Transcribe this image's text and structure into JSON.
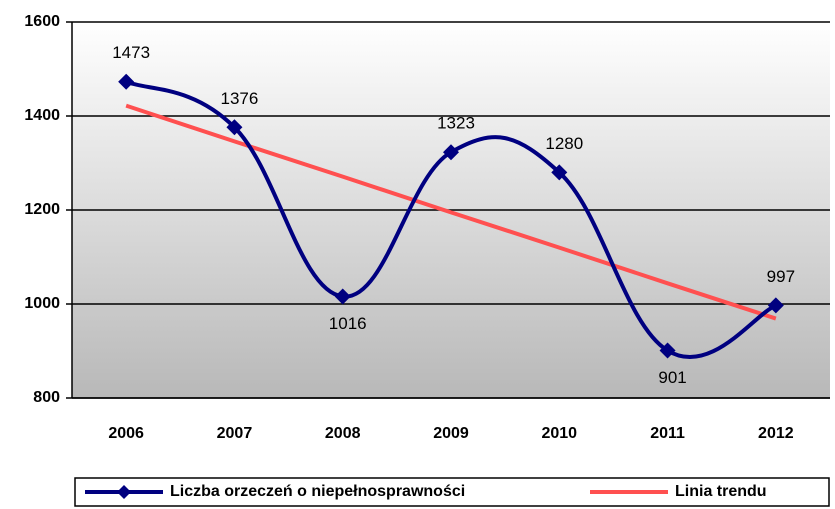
{
  "chart_data": {
    "type": "line",
    "categories": [
      "2006",
      "2007",
      "2008",
      "2009",
      "2010",
      "2011",
      "2012"
    ],
    "series": [
      {
        "name": "Liczba orzeczeń o niepełnosprawności",
        "color": "#000080",
        "values": [
          1473,
          1376,
          1016,
          1323,
          1280,
          901,
          997
        ],
        "smooth": true,
        "marker": "diamond",
        "data_labels": true
      },
      {
        "name": "Linia trendu",
        "color": "#ff5050",
        "values": [
          1422,
          1346,
          1271,
          1195,
          1120,
          1044,
          969
        ],
        "smooth": false
      }
    ],
    "ylim": [
      800,
      1600
    ],
    "yticks": [
      800,
      1000,
      1200,
      1400,
      1600
    ],
    "grid": true,
    "legend": "bottom"
  }
}
